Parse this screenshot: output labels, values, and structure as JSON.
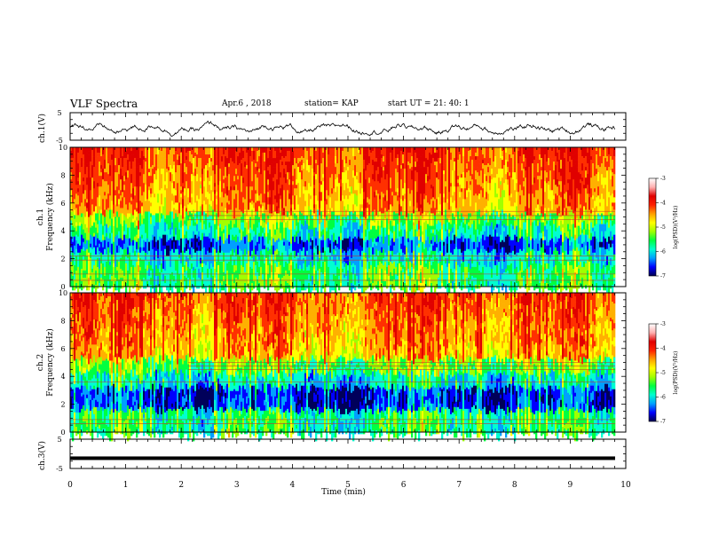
{
  "header": {
    "title": "VLF Spectra",
    "date": "Apr.6  , 2018",
    "station": "station= KAP",
    "start_ut": "start  UT  =   21: 40: 1"
  },
  "chart_data": [
    {
      "type": "line",
      "name": "ch1-waveform",
      "ylabel": "ch.1(V)",
      "ylim": [
        -5,
        5
      ],
      "yticks": [
        "5",
        "-5"
      ],
      "x_range_min": [
        0,
        9.8
      ],
      "note_values_approx": "noisy waveform fluctuating around -0.8 V"
    },
    {
      "type": "heatmap",
      "name": "ch1-spectrogram",
      "ylabel": "ch.1\nFrequency (kHz)",
      "ylim": [
        0,
        10
      ],
      "yticks": [
        "0",
        "2",
        "4",
        "6",
        "8",
        "10"
      ],
      "xlim": [
        0,
        9.8
      ],
      "colorbar": {
        "label": "log(PSD)(V²/Hz)",
        "range": [
          -7,
          -3
        ],
        "ticks": [
          "-3",
          "-4",
          "-5",
          "-6",
          "-7"
        ]
      }
    },
    {
      "type": "heatmap",
      "name": "ch2-spectrogram",
      "ylabel": "ch.2\nFrequency (kHz)",
      "ylim": [
        0,
        10
      ],
      "yticks": [
        "0",
        "2",
        "4",
        "6",
        "8",
        "10"
      ],
      "xlim": [
        0,
        9.8
      ],
      "colorbar": {
        "label": "log(PSD)(V²/Hz)",
        "range": [
          -7,
          -3
        ],
        "ticks": [
          "-3",
          "-4",
          "-5",
          "-6",
          "-7"
        ]
      }
    },
    {
      "type": "line",
      "name": "ch3-waveform",
      "ylabel": "ch.3(V)",
      "ylim": [
        -5,
        5
      ],
      "yticks": [
        "5",
        "-5"
      ],
      "note_values_approx": "flat trace at about -1.5 V"
    }
  ],
  "axes": {
    "x_label": "Time  (min)",
    "x_ticks": [
      "0",
      "1",
      "2",
      "3",
      "4",
      "5",
      "6",
      "7",
      "8",
      "9",
      "10"
    ],
    "x_min": 0,
    "x_max": 10,
    "x_data_end": 9.8
  },
  "ylabels": {
    "ch1_wave": "ch.1(V)",
    "ch1_spec_a": "ch.1",
    "ch1_spec_b": "Frequency (kHz)",
    "ch2_spec_a": "ch.2",
    "ch2_spec_b": "Frequency (kHz)",
    "ch3_wave": "ch.3(V)"
  },
  "wave_ticks": {
    "top": "5",
    "bottom": "-5"
  },
  "freq_ticks": [
    "0",
    "2",
    "4",
    "6",
    "8",
    "10"
  ],
  "colorbar": {
    "label": "log(PSD)(V²/Hz)",
    "ticks": [
      "-3",
      "-4",
      "-5",
      "-6",
      "-7"
    ]
  },
  "colors": {
    "palette": [
      "#00005a",
      "#0000ff",
      "#00a0ff",
      "#00ffd0",
      "#00ff40",
      "#a0ff00",
      "#ffff00",
      "#ffb000",
      "#ff3000",
      "#e00000"
    ],
    "cbar_top": "#ffffff"
  }
}
